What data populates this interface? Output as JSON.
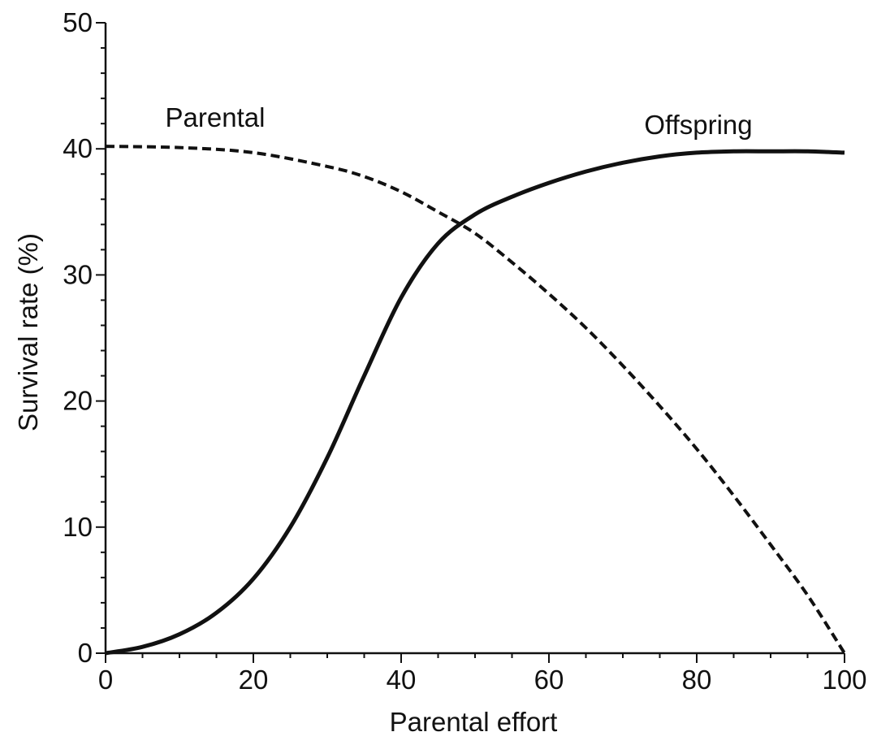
{
  "chart_data": {
    "type": "line",
    "title": "",
    "xlabel": "Parental effort",
    "ylabel": "Survival rate (%)",
    "xlim": [
      0,
      100
    ],
    "ylim": [
      0,
      50
    ],
    "x_ticks": [
      0,
      20,
      40,
      60,
      80,
      100
    ],
    "y_ticks": [
      0,
      10,
      20,
      30,
      40,
      50
    ],
    "x_tick_labels": [
      "0",
      "20",
      "40",
      "60",
      "80",
      "100"
    ],
    "y_tick_labels": [
      "0",
      "10",
      "20",
      "30",
      "40",
      "50"
    ],
    "grid": false,
    "legend": "none",
    "series": [
      {
        "name": "Parental",
        "style": "dashed",
        "x": [
          0,
          10,
          20,
          30,
          35,
          40,
          45,
          50,
          55,
          60,
          65,
          70,
          75,
          80,
          85,
          90,
          95,
          100
        ],
        "y": [
          40.2,
          40.1,
          39.7,
          38.6,
          37.8,
          36.6,
          35.0,
          33.3,
          31.0,
          28.5,
          25.8,
          22.8,
          19.6,
          16.2,
          12.5,
          8.6,
          4.6,
          0
        ]
      },
      {
        "name": "Offspring",
        "style": "solid",
        "x": [
          0,
          5,
          10,
          15,
          20,
          25,
          30,
          35,
          40,
          45,
          50,
          55,
          60,
          65,
          70,
          75,
          80,
          85,
          90,
          95,
          100
        ],
        "y": [
          0,
          0.5,
          1.5,
          3.2,
          5.9,
          10.0,
          15.5,
          22.0,
          28.2,
          32.5,
          34.8,
          36.2,
          37.3,
          38.2,
          38.9,
          39.4,
          39.7,
          39.8,
          39.8,
          39.8,
          39.7
        ]
      }
    ],
    "annotations": {
      "parental": "Parental",
      "offspring": "Offspring"
    },
    "colors": {
      "axis": "#111111",
      "parental": "#111111",
      "offspring": "#111111"
    }
  }
}
